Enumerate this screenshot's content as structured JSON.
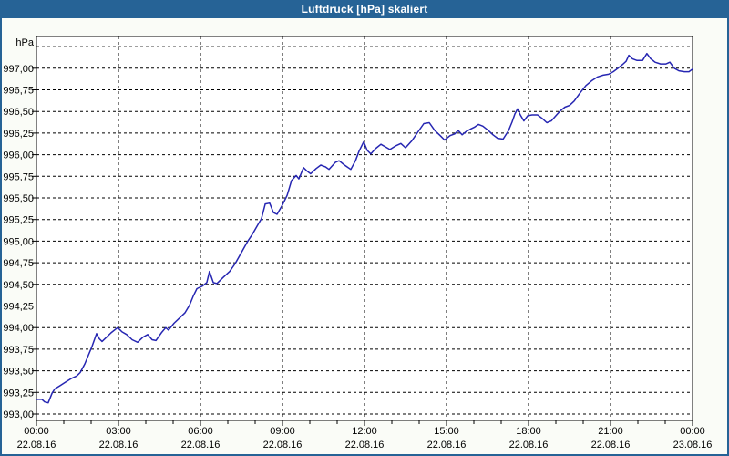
{
  "window": {
    "title": "Luftdruck [hPa] skaliert"
  },
  "colors": {
    "titlebar_bg": "#266396",
    "title_text": "#ffffff",
    "window_border": "#266396",
    "plot_background": "#ffffff",
    "page_background": "#fafcf7",
    "grid": "#000000",
    "axis": "#000000",
    "line": "#2626b2"
  },
  "chart_data": {
    "type": "line",
    "title": "Luftdruck [hPa] skaliert",
    "ylabel": "hPa",
    "xlabel": "",
    "legend": "none",
    "grid": "dashed",
    "ylim": [
      993.0,
      997.25
    ],
    "y_grid_step": 0.25,
    "y_tick_labels": [
      "993,00",
      "993,25",
      "993,50",
      "993,75",
      "994,00",
      "994,25",
      "994,50",
      "994,75",
      "995,00",
      "995,25",
      "995,50",
      "995,75",
      "996,00",
      "996,25",
      "996,50",
      "996,75",
      "997,00"
    ],
    "y_tick_values": [
      993.0,
      993.25,
      993.5,
      993.75,
      994.0,
      994.25,
      994.5,
      994.75,
      995.0,
      995.25,
      995.5,
      995.75,
      996.0,
      996.25,
      996.5,
      996.75,
      997.0
    ],
    "x_range_hours": [
      0,
      24
    ],
    "x_minor_tick_hours": 1,
    "x_major_tick_hours": 3,
    "x_ticks": [
      {
        "hour": 0,
        "time": "00:00",
        "date": "22.08.16"
      },
      {
        "hour": 3,
        "time": "03:00",
        "date": "22.08.16"
      },
      {
        "hour": 6,
        "time": "06:00",
        "date": "22.08.16"
      },
      {
        "hour": 9,
        "time": "09:00",
        "date": "22.08.16"
      },
      {
        "hour": 12,
        "time": "12:00",
        "date": "22.08.16"
      },
      {
        "hour": 15,
        "time": "15:00",
        "date": "22.08.16"
      },
      {
        "hour": 18,
        "time": "18:00",
        "date": "22.08.16"
      },
      {
        "hour": 21,
        "time": "21:00",
        "date": "22.08.16"
      },
      {
        "hour": 24,
        "time": "00:00",
        "date": "23.08.16"
      }
    ],
    "series": [
      {
        "name": "Luftdruck [hPa]",
        "color": "#2626b2",
        "points_hour_hpa": [
          [
            0.0,
            993.17
          ],
          [
            0.2,
            993.17
          ],
          [
            0.3,
            993.14
          ],
          [
            0.43,
            993.13
          ],
          [
            0.57,
            993.24
          ],
          [
            0.67,
            993.29
          ],
          [
            0.87,
            993.33
          ],
          [
            1.07,
            993.37
          ],
          [
            1.27,
            993.41
          ],
          [
            1.47,
            993.44
          ],
          [
            1.6,
            993.48
          ],
          [
            1.77,
            993.58
          ],
          [
            1.9,
            993.68
          ],
          [
            2.03,
            993.78
          ],
          [
            2.2,
            993.93
          ],
          [
            2.3,
            993.87
          ],
          [
            2.4,
            993.84
          ],
          [
            2.57,
            993.89
          ],
          [
            2.73,
            993.94
          ],
          [
            2.97,
            994.0
          ],
          [
            3.13,
            993.95
          ],
          [
            3.3,
            993.92
          ],
          [
            3.5,
            993.86
          ],
          [
            3.7,
            993.83
          ],
          [
            3.9,
            993.89
          ],
          [
            4.07,
            993.92
          ],
          [
            4.23,
            993.86
          ],
          [
            4.37,
            993.85
          ],
          [
            4.57,
            993.94
          ],
          [
            4.73,
            994.0
          ],
          [
            4.83,
            993.97
          ],
          [
            5.03,
            994.05
          ],
          [
            5.23,
            994.11
          ],
          [
            5.43,
            994.17
          ],
          [
            5.6,
            994.26
          ],
          [
            5.73,
            994.36
          ],
          [
            5.87,
            994.45
          ],
          [
            6.07,
            994.48
          ],
          [
            6.23,
            994.52
          ],
          [
            6.33,
            994.65
          ],
          [
            6.47,
            994.52
          ],
          [
            6.6,
            994.51
          ],
          [
            6.83,
            994.58
          ],
          [
            7.07,
            994.65
          ],
          [
            7.27,
            994.74
          ],
          [
            7.5,
            994.87
          ],
          [
            7.73,
            995.0
          ],
          [
            7.9,
            995.08
          ],
          [
            8.1,
            995.19
          ],
          [
            8.23,
            995.26
          ],
          [
            8.37,
            995.43
          ],
          [
            8.53,
            995.44
          ],
          [
            8.67,
            995.33
          ],
          [
            8.8,
            995.31
          ],
          [
            9.0,
            995.42
          ],
          [
            9.17,
            995.53
          ],
          [
            9.33,
            995.7
          ],
          [
            9.5,
            995.76
          ],
          [
            9.6,
            995.72
          ],
          [
            9.77,
            995.85
          ],
          [
            9.9,
            995.81
          ],
          [
            10.03,
            995.78
          ],
          [
            10.23,
            995.84
          ],
          [
            10.4,
            995.88
          ],
          [
            10.57,
            995.86
          ],
          [
            10.7,
            995.83
          ],
          [
            10.93,
            995.91
          ],
          [
            11.07,
            995.93
          ],
          [
            11.27,
            995.88
          ],
          [
            11.5,
            995.83
          ],
          [
            11.67,
            995.93
          ],
          [
            11.8,
            996.04
          ],
          [
            11.97,
            996.15
          ],
          [
            12.1,
            996.05
          ],
          [
            12.23,
            996.01
          ],
          [
            12.4,
            996.07
          ],
          [
            12.6,
            996.12
          ],
          [
            12.77,
            996.09
          ],
          [
            12.93,
            996.06
          ],
          [
            13.13,
            996.1
          ],
          [
            13.33,
            996.13
          ],
          [
            13.5,
            996.08
          ],
          [
            13.73,
            996.16
          ],
          [
            13.97,
            996.27
          ],
          [
            14.17,
            996.36
          ],
          [
            14.37,
            996.37
          ],
          [
            14.57,
            996.28
          ],
          [
            14.77,
            996.22
          ],
          [
            14.93,
            996.17
          ],
          [
            15.13,
            996.22
          ],
          [
            15.3,
            996.24
          ],
          [
            15.43,
            996.28
          ],
          [
            15.57,
            996.23
          ],
          [
            15.73,
            996.27
          ],
          [
            15.9,
            996.3
          ],
          [
            16.03,
            996.32
          ],
          [
            16.17,
            996.35
          ],
          [
            16.33,
            996.33
          ],
          [
            16.53,
            996.28
          ],
          [
            16.7,
            996.23
          ],
          [
            16.87,
            996.19
          ],
          [
            17.07,
            996.18
          ],
          [
            17.27,
            996.28
          ],
          [
            17.4,
            996.38
          ],
          [
            17.5,
            996.47
          ],
          [
            17.6,
            996.53
          ],
          [
            17.7,
            996.46
          ],
          [
            17.83,
            996.39
          ],
          [
            17.97,
            996.45
          ],
          [
            18.13,
            996.46
          ],
          [
            18.33,
            996.46
          ],
          [
            18.5,
            996.42
          ],
          [
            18.67,
            996.37
          ],
          [
            18.83,
            996.39
          ],
          [
            19.0,
            996.45
          ],
          [
            19.17,
            996.51
          ],
          [
            19.33,
            996.55
          ],
          [
            19.5,
            996.57
          ],
          [
            19.67,
            996.62
          ],
          [
            19.9,
            996.72
          ],
          [
            20.1,
            996.8
          ],
          [
            20.33,
            996.86
          ],
          [
            20.53,
            996.9
          ],
          [
            20.73,
            996.92
          ],
          [
            20.93,
            996.93
          ],
          [
            21.1,
            996.96
          ],
          [
            21.27,
            997.0
          ],
          [
            21.43,
            997.04
          ],
          [
            21.57,
            997.08
          ],
          [
            21.67,
            997.15
          ],
          [
            21.8,
            997.11
          ],
          [
            21.97,
            997.09
          ],
          [
            22.17,
            997.09
          ],
          [
            22.33,
            997.17
          ],
          [
            22.47,
            997.11
          ],
          [
            22.63,
            997.07
          ],
          [
            22.83,
            997.05
          ],
          [
            23.03,
            997.05
          ],
          [
            23.17,
            997.07
          ],
          [
            23.33,
            997.0
          ],
          [
            23.5,
            996.97
          ],
          [
            23.7,
            996.96
          ],
          [
            23.87,
            996.96
          ],
          [
            24.0,
            996.99
          ]
        ]
      }
    ]
  }
}
